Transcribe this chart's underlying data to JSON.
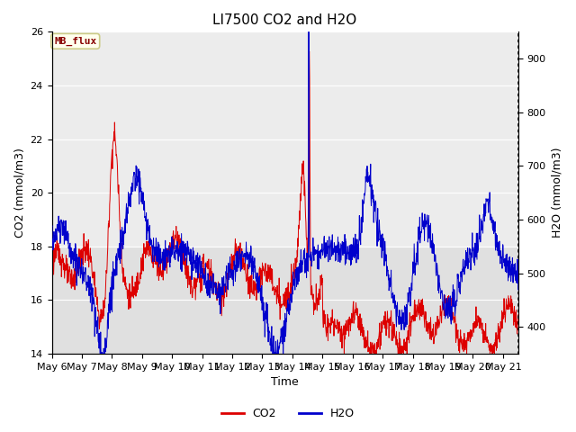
{
  "title": "LI7500 CO2 and H2O",
  "xlabel": "Time",
  "ylabel_left": "CO2 (mmol/m3)",
  "ylabel_right": "H2O (mmol/m3)",
  "annotation_text": "MB_flux",
  "annotation_facecolor": "#ffffee",
  "annotation_edgecolor": "#cccc88",
  "annotation_textcolor": "#880000",
  "co2_color": "#dd0000",
  "h2o_color": "#0000cc",
  "co2_ylim": [
    14,
    26
  ],
  "h2o_ylim": [
    350,
    950
  ],
  "x_tick_labels": [
    "May 6",
    "May 7",
    "May 8",
    "May 9",
    "May 10",
    "May 11",
    "May 12",
    "May 13",
    "May 14",
    "May 15",
    "May 16",
    "May 17",
    "May 18",
    "May 19",
    "May 20",
    "May 21"
  ],
  "grid_color": "#ffffff",
  "bg_color": "#e0e0e0",
  "upper_band_color": "#ececec",
  "lower_band_co2": 14,
  "upper_band_co2": 18,
  "title_fontsize": 11,
  "axis_fontsize": 9,
  "tick_fontsize": 8,
  "line_width": 0.7
}
